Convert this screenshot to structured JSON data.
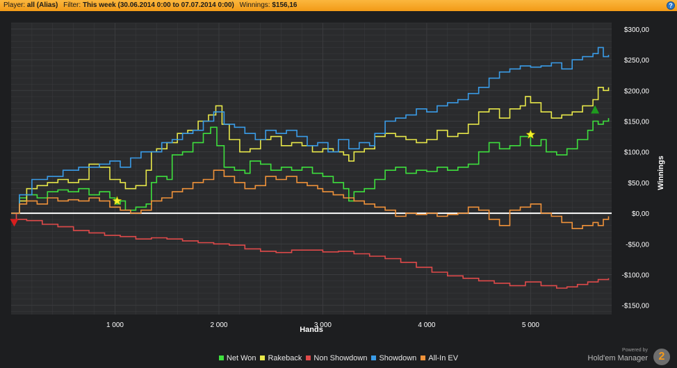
{
  "header": {
    "player_label": "Player:",
    "player_value": "all (Alias)",
    "filter_label": "Filter:",
    "filter_value": "This week (30.06.2014 0:00 to 07.07.2014 0:00)",
    "winnings_label": "Winnings:",
    "winnings_value": "$156,16",
    "help_icon": "question-circle-icon",
    "help_symbol": "?"
  },
  "colors": {
    "background": "#1d1e20",
    "plot_background": "#2a2b2d",
    "grid": "#3b3c3f",
    "zero_line": "#ffffff",
    "header": "#f5a623"
  },
  "chart_data": {
    "type": "line",
    "title": "",
    "xlabel": "Hands",
    "ylabel": "Winnings",
    "xlim": [
      0,
      5780
    ],
    "ylim": [
      -165,
      310
    ],
    "x_ticks": [
      1000,
      2000,
      3000,
      4000,
      5000
    ],
    "x_tick_labels": [
      "1 000",
      "2 000",
      "3 000",
      "4 000",
      "5 000"
    ],
    "y_ticks": [
      300,
      250,
      200,
      150,
      100,
      50,
      0,
      -50,
      -100,
      -150
    ],
    "y_tick_labels": [
      "$300,00",
      "$250,00",
      "$200,00",
      "$150,00",
      "$100,00",
      "$50,00",
      "$0,00",
      "-$50,00",
      "-$100,00",
      "-$150,00"
    ],
    "grid": true,
    "legend_position": "bottom",
    "series": [
      {
        "name": "Net Won",
        "color": "#3ee03e",
        "points": [
          [
            0,
            0
          ],
          [
            80,
            25
          ],
          [
            150,
            30
          ],
          [
            250,
            25
          ],
          [
            350,
            35
          ],
          [
            450,
            38
          ],
          [
            550,
            35
          ],
          [
            650,
            40
          ],
          [
            750,
            30
          ],
          [
            850,
            35
          ],
          [
            950,
            25
          ],
          [
            1000,
            15
          ],
          [
            1050,
            20
          ],
          [
            1100,
            5
          ],
          [
            1200,
            10
          ],
          [
            1300,
            15
          ],
          [
            1350,
            50
          ],
          [
            1400,
            60
          ],
          [
            1500,
            55
          ],
          [
            1550,
            95
          ],
          [
            1650,
            100
          ],
          [
            1750,
            115
          ],
          [
            1850,
            130
          ],
          [
            1920,
            140
          ],
          [
            1980,
            110
          ],
          [
            2050,
            75
          ],
          [
            2150,
            70
          ],
          [
            2250,
            65
          ],
          [
            2300,
            85
          ],
          [
            2400,
            80
          ],
          [
            2500,
            70
          ],
          [
            2600,
            75
          ],
          [
            2700,
            70
          ],
          [
            2800,
            75
          ],
          [
            2900,
            65
          ],
          [
            3000,
            60
          ],
          [
            3100,
            50
          ],
          [
            3200,
            40
          ],
          [
            3250,
            20
          ],
          [
            3300,
            35
          ],
          [
            3400,
            40
          ],
          [
            3500,
            55
          ],
          [
            3600,
            70
          ],
          [
            3700,
            75
          ],
          [
            3800,
            65
          ],
          [
            3900,
            70
          ],
          [
            4000,
            68
          ],
          [
            4100,
            75
          ],
          [
            4200,
            70
          ],
          [
            4300,
            75
          ],
          [
            4400,
            80
          ],
          [
            4500,
            100
          ],
          [
            4600,
            115
          ],
          [
            4700,
            105
          ],
          [
            4800,
            110
          ],
          [
            4900,
            125
          ],
          [
            5000,
            110
          ],
          [
            5100,
            120
          ],
          [
            5150,
            100
          ],
          [
            5250,
            95
          ],
          [
            5350,
            105
          ],
          [
            5450,
            120
          ],
          [
            5550,
            135
          ],
          [
            5600,
            150
          ],
          [
            5650,
            145
          ],
          [
            5700,
            150
          ],
          [
            5750,
            155
          ]
        ]
      },
      {
        "name": "Rakeback",
        "color": "#e8e84a",
        "points": [
          [
            0,
            0
          ],
          [
            80,
            20
          ],
          [
            150,
            40
          ],
          [
            250,
            45
          ],
          [
            350,
            50
          ],
          [
            450,
            55
          ],
          [
            550,
            50
          ],
          [
            650,
            55
          ],
          [
            750,
            80
          ],
          [
            850,
            75
          ],
          [
            950,
            55
          ],
          [
            1050,
            50
          ],
          [
            1100,
            40
          ],
          [
            1200,
            45
          ],
          [
            1300,
            70
          ],
          [
            1350,
            100
          ],
          [
            1400,
            105
          ],
          [
            1500,
            115
          ],
          [
            1600,
            130
          ],
          [
            1700,
            135
          ],
          [
            1800,
            150
          ],
          [
            1900,
            160
          ],
          [
            1970,
            175
          ],
          [
            2030,
            145
          ],
          [
            2100,
            120
          ],
          [
            2200,
            100
          ],
          [
            2300,
            105
          ],
          [
            2400,
            120
          ],
          [
            2500,
            125
          ],
          [
            2600,
            110
          ],
          [
            2700,
            115
          ],
          [
            2800,
            110
          ],
          [
            2900,
            100
          ],
          [
            3000,
            105
          ],
          [
            3100,
            100
          ],
          [
            3200,
            95
          ],
          [
            3250,
            85
          ],
          [
            3300,
            100
          ],
          [
            3400,
            105
          ],
          [
            3500,
            125
          ],
          [
            3600,
            130
          ],
          [
            3700,
            125
          ],
          [
            3800,
            120
          ],
          [
            3900,
            115
          ],
          [
            4000,
            120
          ],
          [
            4100,
            135
          ],
          [
            4200,
            125
          ],
          [
            4300,
            130
          ],
          [
            4400,
            145
          ],
          [
            4500,
            165
          ],
          [
            4600,
            170
          ],
          [
            4700,
            155
          ],
          [
            4800,
            170
          ],
          [
            4900,
            175
          ],
          [
            4950,
            190
          ],
          [
            5000,
            180
          ],
          [
            5100,
            165
          ],
          [
            5200,
            155
          ],
          [
            5300,
            160
          ],
          [
            5400,
            165
          ],
          [
            5500,
            175
          ],
          [
            5600,
            185
          ],
          [
            5650,
            205
          ],
          [
            5700,
            200
          ],
          [
            5750,
            205
          ]
        ]
      },
      {
        "name": "Non Showdown",
        "color": "#e04a4a",
        "points": [
          [
            0,
            0
          ],
          [
            50,
            -10
          ],
          [
            150,
            -12
          ],
          [
            300,
            -18
          ],
          [
            450,
            -22
          ],
          [
            600,
            -28
          ],
          [
            750,
            -32
          ],
          [
            900,
            -36
          ],
          [
            1050,
            -38
          ],
          [
            1200,
            -42
          ],
          [
            1350,
            -40
          ],
          [
            1500,
            -42
          ],
          [
            1650,
            -45
          ],
          [
            1800,
            -48
          ],
          [
            1950,
            -50
          ],
          [
            2100,
            -52
          ],
          [
            2250,
            -58
          ],
          [
            2400,
            -62
          ],
          [
            2550,
            -64
          ],
          [
            2700,
            -60
          ],
          [
            2850,
            -60
          ],
          [
            3000,
            -63
          ],
          [
            3150,
            -62
          ],
          [
            3300,
            -66
          ],
          [
            3450,
            -70
          ],
          [
            3600,
            -74
          ],
          [
            3750,
            -80
          ],
          [
            3900,
            -88
          ],
          [
            4050,
            -96
          ],
          [
            4200,
            -102
          ],
          [
            4350,
            -106
          ],
          [
            4500,
            -110
          ],
          [
            4650,
            -114
          ],
          [
            4800,
            -118
          ],
          [
            4950,
            -112
          ],
          [
            5100,
            -118
          ],
          [
            5250,
            -122
          ],
          [
            5350,
            -120
          ],
          [
            5450,
            -116
          ],
          [
            5550,
            -112
          ],
          [
            5650,
            -108
          ],
          [
            5750,
            -106
          ]
        ]
      },
      {
        "name": "Showdown",
        "color": "#3a9ce8",
        "points": [
          [
            0,
            0
          ],
          [
            80,
            30
          ],
          [
            200,
            55
          ],
          [
            350,
            60
          ],
          [
            500,
            70
          ],
          [
            650,
            75
          ],
          [
            750,
            75
          ],
          [
            850,
            80
          ],
          [
            950,
            85
          ],
          [
            1050,
            75
          ],
          [
            1150,
            90
          ],
          [
            1250,
            100
          ],
          [
            1350,
            100
          ],
          [
            1450,
            115
          ],
          [
            1550,
            120
          ],
          [
            1650,
            130
          ],
          [
            1750,
            135
          ],
          [
            1850,
            150
          ],
          [
            1950,
            165
          ],
          [
            2050,
            145
          ],
          [
            2150,
            140
          ],
          [
            2250,
            130
          ],
          [
            2350,
            120
          ],
          [
            2450,
            135
          ],
          [
            2550,
            130
          ],
          [
            2650,
            135
          ],
          [
            2750,
            125
          ],
          [
            2850,
            110
          ],
          [
            2950,
            115
          ],
          [
            3050,
            100
          ],
          [
            3150,
            120
          ],
          [
            3250,
            105
          ],
          [
            3350,
            115
          ],
          [
            3450,
            110
          ],
          [
            3500,
            130
          ],
          [
            3600,
            150
          ],
          [
            3700,
            155
          ],
          [
            3800,
            160
          ],
          [
            3900,
            170
          ],
          [
            4000,
            165
          ],
          [
            4100,
            175
          ],
          [
            4200,
            180
          ],
          [
            4300,
            185
          ],
          [
            4400,
            195
          ],
          [
            4500,
            205
          ],
          [
            4600,
            220
          ],
          [
            4700,
            230
          ],
          [
            4800,
            235
          ],
          [
            4900,
            240
          ],
          [
            5000,
            238
          ],
          [
            5100,
            240
          ],
          [
            5200,
            245
          ],
          [
            5300,
            235
          ],
          [
            5400,
            250
          ],
          [
            5500,
            255
          ],
          [
            5600,
            260
          ],
          [
            5650,
            270
          ],
          [
            5700,
            255
          ],
          [
            5750,
            258
          ]
        ]
      },
      {
        "name": "All-In EV",
        "color": "#f0923a",
        "points": [
          [
            0,
            0
          ],
          [
            80,
            15
          ],
          [
            150,
            20
          ],
          [
            250,
            15
          ],
          [
            350,
            25
          ],
          [
            450,
            20
          ],
          [
            550,
            22
          ],
          [
            650,
            20
          ],
          [
            750,
            25
          ],
          [
            850,
            20
          ],
          [
            950,
            10
          ],
          [
            1050,
            5
          ],
          [
            1150,
            0
          ],
          [
            1250,
            5
          ],
          [
            1350,
            20
          ],
          [
            1450,
            25
          ],
          [
            1550,
            35
          ],
          [
            1650,
            40
          ],
          [
            1750,
            50
          ],
          [
            1850,
            55
          ],
          [
            1950,
            70
          ],
          [
            2050,
            60
          ],
          [
            2150,
            50
          ],
          [
            2250,
            40
          ],
          [
            2350,
            45
          ],
          [
            2450,
            60
          ],
          [
            2550,
            55
          ],
          [
            2650,
            60
          ],
          [
            2750,
            50
          ],
          [
            2850,
            45
          ],
          [
            2950,
            40
          ],
          [
            3000,
            35
          ],
          [
            3100,
            30
          ],
          [
            3200,
            25
          ],
          [
            3300,
            20
          ],
          [
            3400,
            15
          ],
          [
            3500,
            10
          ],
          [
            3600,
            5
          ],
          [
            3700,
            -5
          ],
          [
            3800,
            0
          ],
          [
            3900,
            -2
          ],
          [
            4000,
            0
          ],
          [
            4100,
            -5
          ],
          [
            4200,
            -2
          ],
          [
            4300,
            0
          ],
          [
            4400,
            10
          ],
          [
            4500,
            5
          ],
          [
            4600,
            -10
          ],
          [
            4700,
            -20
          ],
          [
            4800,
            5
          ],
          [
            4900,
            10
          ],
          [
            5000,
            15
          ],
          [
            5100,
            0
          ],
          [
            5200,
            -5
          ],
          [
            5300,
            -15
          ],
          [
            5400,
            -25
          ],
          [
            5500,
            -20
          ],
          [
            5600,
            -15
          ],
          [
            5650,
            -20
          ],
          [
            5700,
            -10
          ],
          [
            5750,
            -5
          ]
        ]
      }
    ],
    "markers": [
      {
        "series": "Net Won",
        "shape": "star",
        "color": "#f2f22a",
        "x": 1020,
        "y": 20
      },
      {
        "series": "Net Won",
        "shape": "star",
        "color": "#f2f22a",
        "x": 5000,
        "y": 128
      },
      {
        "series": "Net Won",
        "shape": "triangle-up",
        "color": "#1f9a1f",
        "x": 5620,
        "y": 168
      },
      {
        "series": "Non Showdown",
        "shape": "triangle-down",
        "color": "#d81e1e",
        "x": 30,
        "y": -15
      }
    ]
  },
  "brand": {
    "powered_by": "Powered by",
    "name": "Hold'em Manager",
    "logo_text": "2",
    "logo_icon": "holdem-manager-logo"
  }
}
